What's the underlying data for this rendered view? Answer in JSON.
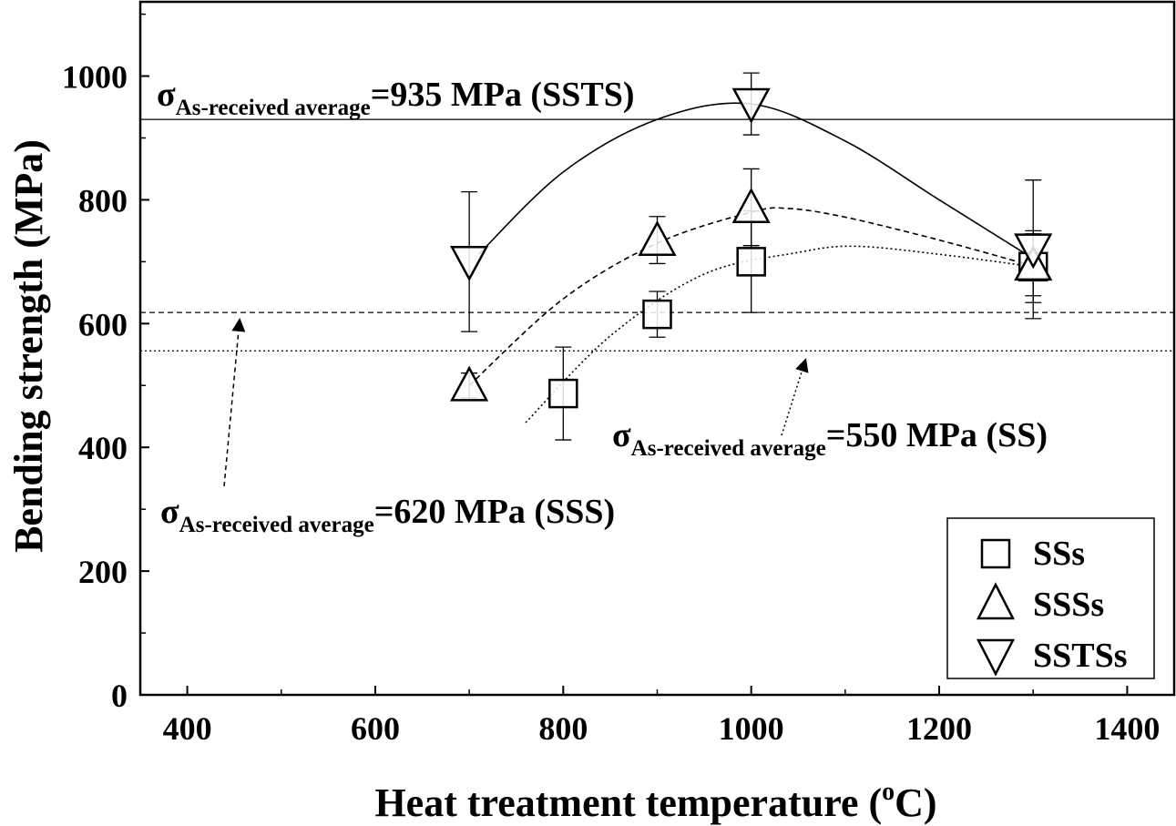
{
  "chart_data": {
    "type": "scatter",
    "xlabel": "Heat treatment temperature (",
    "xlabel_sup": "o",
    "xlabel_end": "C)",
    "ylabel": "Bending strength (MPa)",
    "xlim": [
      350,
      1450
    ],
    "ylim": [
      0,
      1120
    ],
    "x_ticks": [
      400,
      600,
      800,
      1000,
      1200,
      1400
    ],
    "y_ticks": [
      0,
      200,
      400,
      600,
      800,
      1000
    ],
    "legend_position": "bottom-right",
    "series": [
      {
        "name": "SSs",
        "marker": "square",
        "points": [
          {
            "x": 800,
            "y": 487,
            "err": 75
          },
          {
            "x": 900,
            "y": 615,
            "err": 37
          },
          {
            "x": 1000,
            "y": 700,
            "err": 82
          },
          {
            "x": 1300,
            "y": 692,
            "err": 58
          }
        ],
        "trend": [
          [
            760,
            440
          ],
          [
            850,
            580
          ],
          [
            950,
            680
          ],
          [
            1050,
            715
          ],
          [
            1110,
            725
          ],
          [
            1200,
            712
          ],
          [
            1300,
            692
          ]
        ]
      },
      {
        "name": "SSSs",
        "marker": "triangle-up",
        "points": [
          {
            "x": 700,
            "y": 500,
            "err": 20
          },
          {
            "x": 900,
            "y": 735,
            "err": 38
          },
          {
            "x": 1000,
            "y": 788,
            "err": 62
          },
          {
            "x": 1300,
            "y": 695,
            "err": 50
          }
        ],
        "trend": [
          [
            700,
            500
          ],
          [
            800,
            640
          ],
          [
            900,
            730
          ],
          [
            1000,
            780
          ],
          [
            1040,
            786
          ],
          [
            1100,
            772
          ],
          [
            1200,
            735
          ],
          [
            1300,
            693
          ]
        ]
      },
      {
        "name": "SSTSs",
        "marker": "triangle-down",
        "points": [
          {
            "x": 700,
            "y": 700,
            "err": 113
          },
          {
            "x": 1000,
            "y": 955,
            "err": 50
          },
          {
            "x": 1300,
            "y": 720,
            "err": 112
          }
        ],
        "trend": [
          [
            710,
            712
          ],
          [
            800,
            845
          ],
          [
            900,
            930
          ],
          [
            1000,
            955
          ],
          [
            1100,
            895
          ],
          [
            1200,
            800
          ],
          [
            1300,
            705
          ]
        ]
      }
    ],
    "reference_lines": [
      {
        "y": 930,
        "style": "solid"
      },
      {
        "y": 618,
        "style": "dashed"
      },
      {
        "y": 556,
        "style": "dotted"
      }
    ],
    "annotations": [
      {
        "sigma": "σ",
        "sub": "As-received average",
        "value": "=935 MPa (SSTS)"
      },
      {
        "sigma": "σ",
        "sub": "As-received average",
        "value": "=550 MPa (SS)"
      },
      {
        "sigma": "σ",
        "sub": "As-received average",
        "value": "=620 MPa (SSS)"
      }
    ]
  }
}
